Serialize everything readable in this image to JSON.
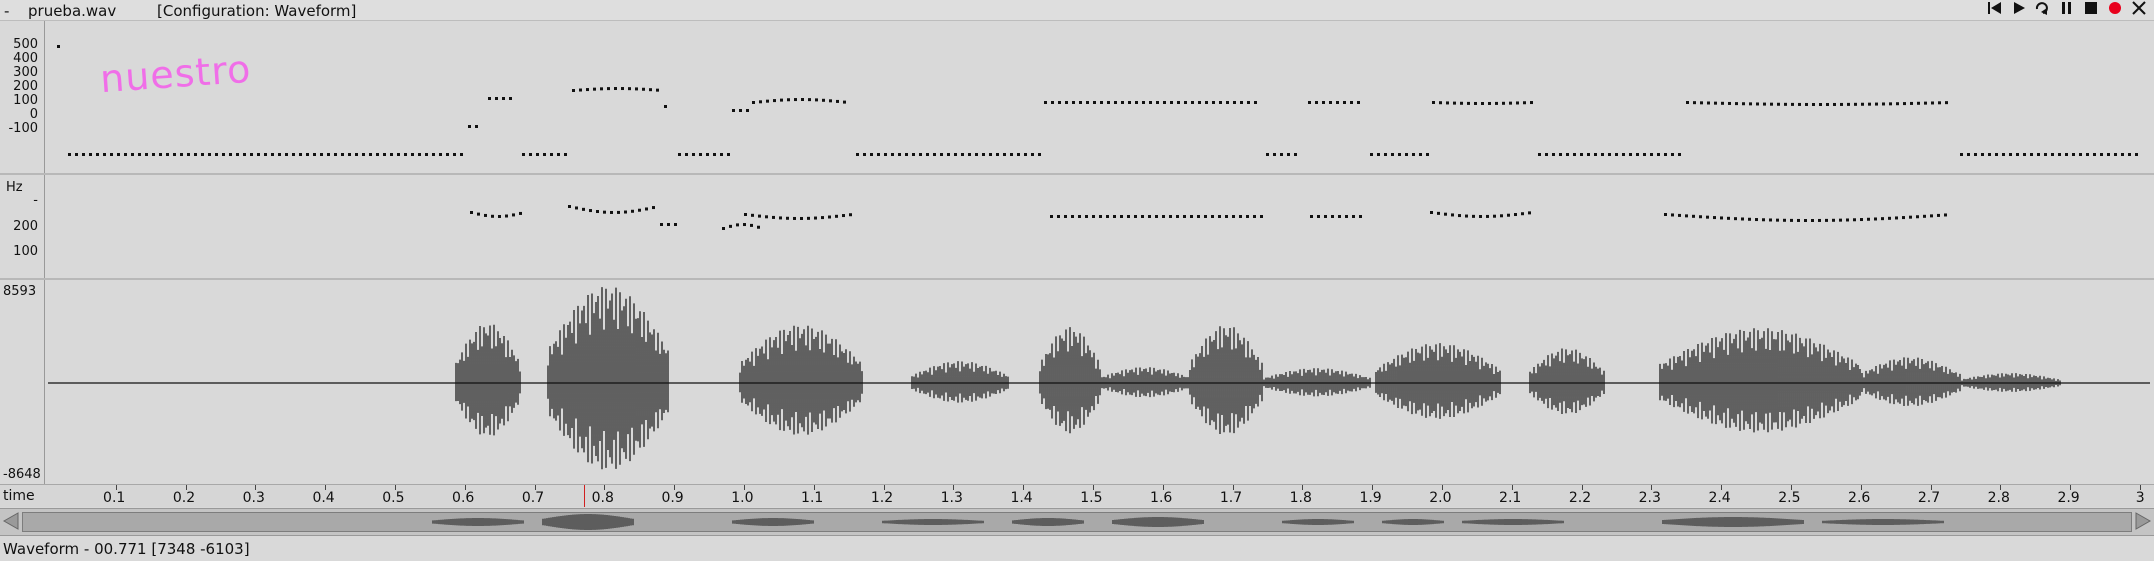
{
  "titlebar": {
    "dash": "-",
    "filename": "prueba.wav",
    "configuration": "[Configuration: Waveform]",
    "icons": [
      "skip-back-icon",
      "play-icon",
      "loop-icon",
      "pause-icon",
      "stop-icon",
      "record-icon",
      "close-icon"
    ],
    "record_color": "#e8001c"
  },
  "overlay_text": "nuestro",
  "overlay_color": "#f06ee8",
  "pitch_panel": {
    "ticks": [
      "500",
      "400",
      "300",
      "200",
      "100",
      "0",
      "-100"
    ]
  },
  "hz_panel": {
    "unit": "Hz",
    "ticks": [
      "-",
      "200",
      "100"
    ]
  },
  "waveform_panel": {
    "max": "8593",
    "min": "-8648"
  },
  "time_axis": {
    "label": "time",
    "ticks": [
      "0.1",
      "0.2",
      "0.3",
      "0.4",
      "0.5",
      "0.6",
      "0.7",
      "0.8",
      "0.9",
      "1.0",
      "1.1",
      "1.2",
      "1.3",
      "1.4",
      "1.5",
      "1.6",
      "1.7",
      "1.8",
      "1.9",
      "2.0",
      "2.1",
      "2.2",
      "2.3",
      "2.4",
      "2.5",
      "2.6",
      "2.7",
      "2.8",
      "2.9",
      "3"
    ],
    "cursor": 0.771,
    "cursor_color": "#d02020"
  },
  "status": {
    "text": "Waveform - 00.771 [7348 -6103]"
  }
}
